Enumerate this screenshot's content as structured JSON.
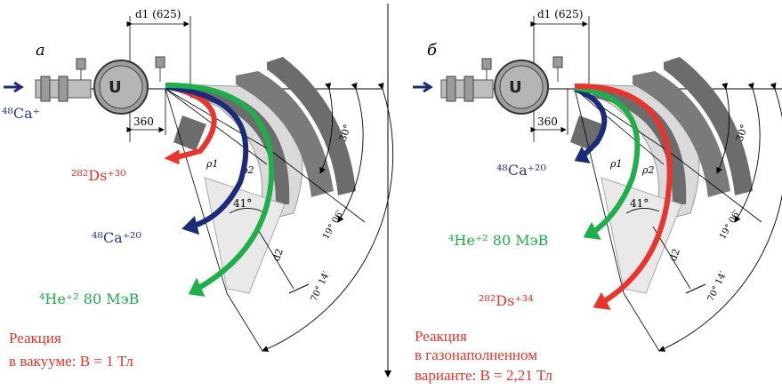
{
  "colors": {
    "red": "#e8342c",
    "blue": "#1c2a7a",
    "green": "#1fae4a",
    "ion_blue": "#2e3a9a",
    "gray_dark": "#6c6c6c",
    "gray_light": "#dadada"
  },
  "left": {
    "panel_letter": "а",
    "d1_label": "d1 (625)",
    "dist_label": "360",
    "beam_label": "⁴⁸Ca⁺",
    "rho1": "ρ1",
    "rho2": "ρ2",
    "angle41": "41°",
    "d2_label": "d2",
    "angle30": "30°",
    "angle19": "19° 06′",
    "angle70": "70° 14′",
    "ds_label": "²⁸²Ds⁺³⁰",
    "ca_label": "⁴⁸Ca⁺²⁰",
    "he_label": "⁴He⁺² 80 МэВ",
    "reaction_line1": "Реакция",
    "reaction_line2": "в  вакууме: B = 1 Тл"
  },
  "right": {
    "panel_letter": "б",
    "d1_label": "d1 (625)",
    "dist_label": "360",
    "rho1": "ρ1",
    "rho2": "ρ2",
    "angle41": "41°",
    "d2_label": "d2",
    "angle30": "30°",
    "angle19": "19° 06′",
    "angle70": "70° 14′",
    "ca_label": "⁴⁸Ca⁺²⁰",
    "he_label": "⁴He⁺² 80 МэВ",
    "ds_label": "²⁸²Ds⁺³⁴",
    "reaction_line1": "Реакция",
    "reaction_line2": "в  газонаполненном",
    "reaction_line3": "варианте: B = 2,21 Тл"
  },
  "divider": "vertical-arrow-down"
}
